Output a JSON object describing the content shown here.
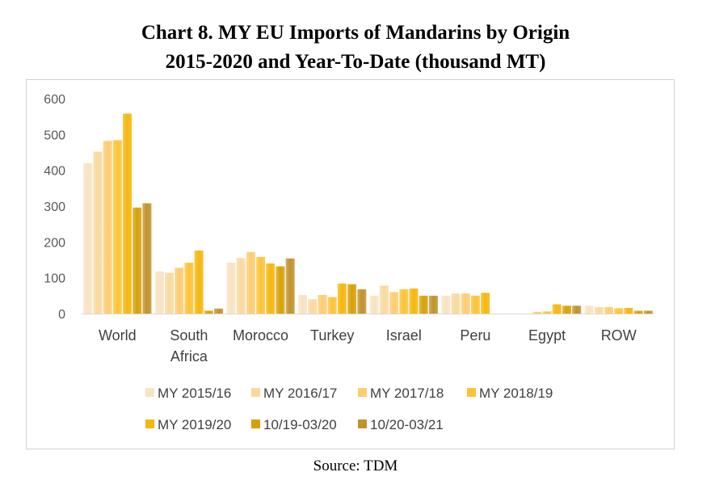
{
  "title_line1": "Chart 8.  MY EU Imports of Mandarins by Origin",
  "title_line2": "2015-2020 and Year-To-Date (thousand MT)",
  "source": "Source: TDM",
  "chart_data": {
    "type": "bar",
    "title": "Chart 8.  MY EU Imports of Mandarins by Origin 2015-2020 and Year-To-Date (thousand MT)",
    "xlabel": "",
    "ylabel": "",
    "ylim": [
      0,
      600
    ],
    "yticks": [
      0,
      100,
      200,
      300,
      400,
      500,
      600
    ],
    "grid": false,
    "legend_position": "bottom",
    "categories": [
      [
        "World"
      ],
      [
        "South",
        "Africa"
      ],
      [
        "Morocco"
      ],
      [
        "Turkey"
      ],
      [
        "Israel"
      ],
      [
        "Peru"
      ],
      [
        "Egypt"
      ],
      [
        "ROW"
      ]
    ],
    "series": [
      {
        "name": "MY 2015/16",
        "color": "#f8e3c2",
        "values": [
          420,
          118,
          142,
          52,
          50,
          50,
          0,
          22
        ]
      },
      {
        "name": "MY 2016/17",
        "color": "#fad99e",
        "values": [
          452,
          114,
          155,
          40,
          78,
          56,
          0,
          18
        ]
      },
      {
        "name": "MY 2017/18",
        "color": "#fdcc72",
        "values": [
          482,
          128,
          172,
          52,
          60,
          56,
          5,
          18
        ]
      },
      {
        "name": "MY 2018/19",
        "color": "#fdc336",
        "values": [
          484,
          142,
          158,
          46,
          68,
          50,
          6,
          15
        ]
      },
      {
        "name": "MY 2019/20",
        "color": "#f5b70c",
        "values": [
          558,
          176,
          140,
          84,
          70,
          58,
          26,
          16
        ]
      },
      {
        "name": "10/19-03/20",
        "color": "#d6a108",
        "values": [
          296,
          8,
          132,
          82,
          50,
          0,
          22,
          8
        ]
      },
      {
        "name": "10/20-03/21",
        "color": "#c1922c",
        "values": [
          308,
          14,
          154,
          68,
          50,
          0,
          22,
          8
        ]
      }
    ]
  }
}
